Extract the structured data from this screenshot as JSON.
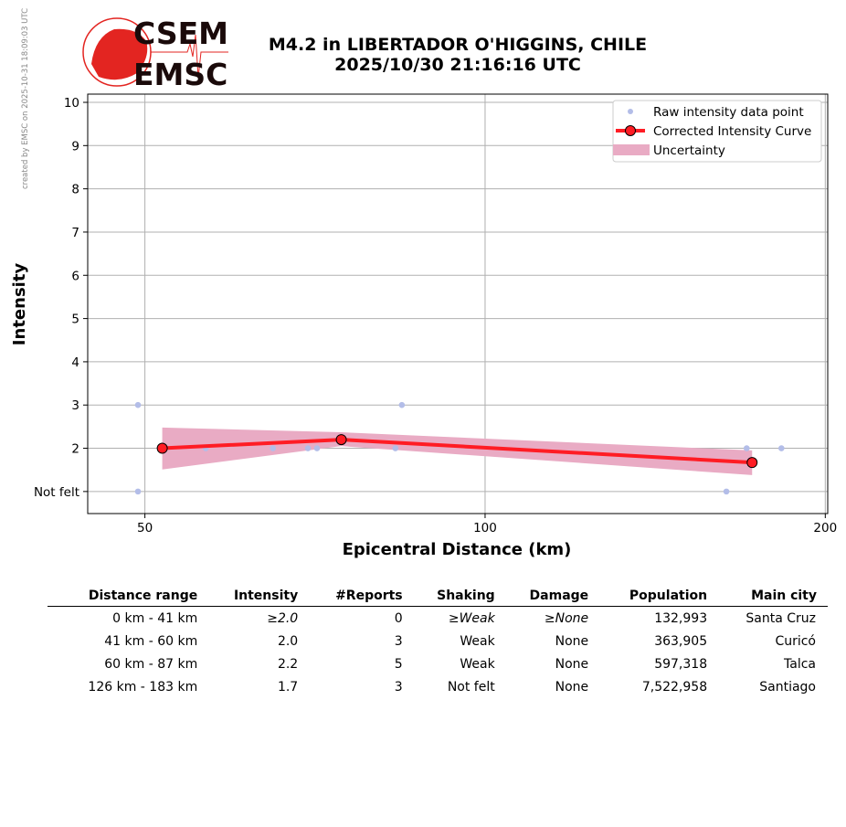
{
  "header": {
    "title": "M4.2 in LIBERTADOR O'HIGGINS, CHILE",
    "datetime": "2025/10/30 21:16:16 UTC",
    "logo_text_top": "CSEM",
    "logo_text_bottom": "EMSC",
    "watermark": "created by EMSC on 2025-10-31 18:09:03 UTC"
  },
  "chart_data": {
    "type": "scatter+line",
    "xlabel": "Epicentral Distance (km)",
    "ylabel": "Intensity",
    "xscale": "log",
    "xlim": [
      44.5,
      201
    ],
    "ylim": [
      0.49,
      10.19
    ],
    "xticks": [
      {
        "v": 50,
        "label": "50"
      },
      {
        "v": 100,
        "label": "100"
      },
      {
        "v": 200,
        "label": "200"
      }
    ],
    "yticks": [
      {
        "v": 1,
        "label": "Not felt"
      },
      {
        "v": 2,
        "label": "2"
      },
      {
        "v": 3,
        "label": "3"
      },
      {
        "v": 4,
        "label": "4"
      },
      {
        "v": 5,
        "label": "5"
      },
      {
        "v": 6,
        "label": "6"
      },
      {
        "v": 7,
        "label": "7"
      },
      {
        "v": 8,
        "label": "8"
      },
      {
        "v": 9,
        "label": "9"
      },
      {
        "v": 10,
        "label": "10"
      }
    ],
    "grid": true,
    "legend_position": "top-right",
    "legend": [
      "Raw intensity data point",
      "Corrected Intensity Curve",
      "Uncertainty"
    ],
    "raw_points": [
      [
        49.3,
        3
      ],
      [
        49.3,
        1
      ],
      [
        56.6,
        2
      ],
      [
        64.9,
        2
      ],
      [
        69.7,
        2
      ],
      [
        71.0,
        2
      ],
      [
        83.3,
        2
      ],
      [
        84.4,
        3
      ],
      [
        163.5,
        1
      ],
      [
        170.4,
        2
      ],
      [
        182.9,
        2
      ]
    ],
    "curve": [
      [
        51.8,
        2.0
      ],
      [
        74.6,
        2.2
      ],
      [
        172.3,
        1.67
      ]
    ],
    "uncertainty_upper": [
      [
        51.8,
        2.48
      ],
      [
        74.6,
        2.37
      ],
      [
        172.3,
        1.95
      ]
    ],
    "uncertainty_lower": [
      [
        51.8,
        1.51
      ],
      [
        74.6,
        2.05
      ],
      [
        172.3,
        1.38
      ]
    ],
    "colors": {
      "raw": "#b3bde8",
      "curve": "#ff1c24",
      "band": "#e9abc4"
    }
  },
  "table": {
    "headers": [
      "Distance range",
      "Intensity",
      "#Reports",
      "Shaking",
      "Damage",
      "Population",
      "Main city"
    ],
    "rows": [
      [
        "0 km -   41 km",
        "≥2.0",
        "0",
        "≥Weak",
        "≥None",
        "132,993",
        "Santa Cruz"
      ],
      [
        "41 km -   60 km",
        "2.0",
        "3",
        "Weak",
        "None",
        "363,905",
        "Curicó"
      ],
      [
        "60 km -   87 km",
        "2.2",
        "5",
        "Weak",
        "None",
        "597,318",
        "Talca"
      ],
      [
        "126 km -  183 km",
        "1.7",
        "3",
        "Not felt",
        "None",
        "7,522,958",
        "Santiago"
      ]
    ]
  }
}
